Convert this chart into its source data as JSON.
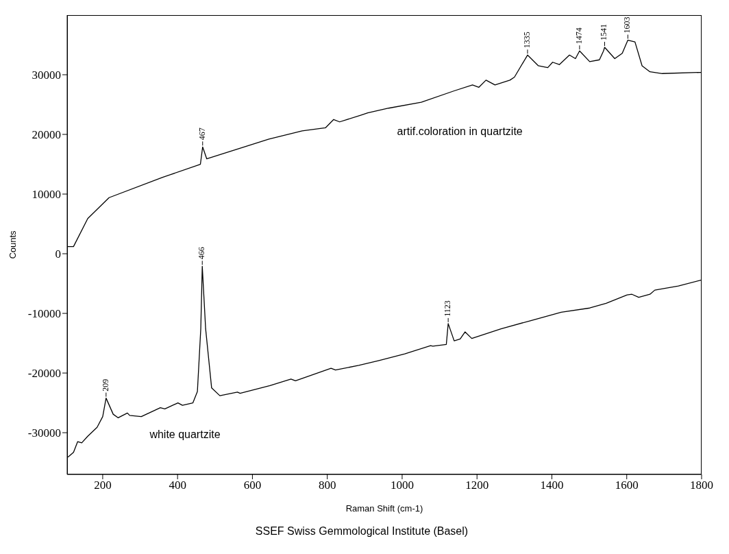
{
  "chart_data": {
    "type": "line",
    "xlabel": "Raman Shift (cm-1)",
    "ylabel": "Counts",
    "xlim": [
      105,
      1800
    ],
    "ylim": [
      -37000,
      40000
    ],
    "xticks": [
      200,
      400,
      600,
      800,
      1000,
      1200,
      1400,
      1600,
      1800
    ],
    "yticks": [
      -30000,
      -20000,
      -10000,
      0,
      10000,
      20000,
      30000
    ],
    "grid": false,
    "legend": false,
    "marker": "none",
    "line_style": "solid",
    "series": [
      {
        "name": "artif.coloration in quartzite",
        "color": "#000000",
        "x": [
          105,
          122,
          160,
          217,
          360,
          461,
          467,
          478,
          644,
          733,
          795,
          817,
          833,
          889,
          908,
          964,
          1051,
          1139,
          1188,
          1205,
          1224,
          1248,
          1288,
          1300,
          1335,
          1364,
          1389,
          1402,
          1420,
          1447,
          1463,
          1474,
          1501,
          1527,
          1538,
          1541,
          1568,
          1588,
          1603,
          1622,
          1641,
          1662,
          1695,
          1800
        ],
        "values": [
          1200,
          1200,
          5900,
          9400,
          12800,
          15000,
          17900,
          15900,
          19200,
          20600,
          21100,
          22500,
          22100,
          23200,
          23600,
          24400,
          25400,
          27300,
          28300,
          27900,
          29100,
          28300,
          29100,
          29600,
          33300,
          31500,
          31200,
          32100,
          31700,
          33300,
          32700,
          34000,
          32200,
          32500,
          34000,
          34600,
          32700,
          33600,
          35800,
          35500,
          31500,
          30500,
          30200,
          30400
        ]
      },
      {
        "name": "white quartzite",
        "color": "#000000",
        "x": [
          107,
          122,
          133,
          144,
          160,
          185,
          200,
          209,
          228,
          241,
          266,
          272,
          303,
          354,
          366,
          401,
          413,
          441,
          453,
          462,
          466,
          475,
          491,
          513,
          560,
          567,
          647,
          703,
          715,
          810,
          822,
          884,
          938,
          1007,
          1076,
          1082,
          1118,
          1123,
          1139,
          1155,
          1168,
          1186,
          1264,
          1344,
          1425,
          1501,
          1545,
          1601,
          1614,
          1632,
          1662,
          1675,
          1738,
          1800
        ],
        "values": [
          -34100,
          -33300,
          -31500,
          -31700,
          -30600,
          -29100,
          -27300,
          -24200,
          -26900,
          -27500,
          -26700,
          -27100,
          -27300,
          -25800,
          -26000,
          -25000,
          -25400,
          -25000,
          -23100,
          -12600,
          -2100,
          -12600,
          -22500,
          -23800,
          -23200,
          -23400,
          -22100,
          -21000,
          -21300,
          -19200,
          -19500,
          -18700,
          -17900,
          -16800,
          -15400,
          -15500,
          -15200,
          -11700,
          -14600,
          -14300,
          -13100,
          -14200,
          -12600,
          -11200,
          -9800,
          -9100,
          -8300,
          -6900,
          -6800,
          -7300,
          -6800,
          -6100,
          -5400,
          -4400
        ]
      }
    ],
    "annotations": [
      {
        "text": "467",
        "x": 467,
        "y": 17900
      },
      {
        "text": "1335",
        "x": 1335,
        "y": 33300
      },
      {
        "text": "1474",
        "x": 1474,
        "y": 34000
      },
      {
        "text": "1541",
        "x": 1541,
        "y": 34600
      },
      {
        "text": "1603",
        "x": 1603,
        "y": 35800
      },
      {
        "text": "209",
        "x": 209,
        "y": -24200
      },
      {
        "text": "466",
        "x": 466,
        "y": -2100
      },
      {
        "text": "1123",
        "x": 1123,
        "y": -11700
      },
      "SSEF Swiss Gemmological Institute (Basel)"
    ]
  }
}
